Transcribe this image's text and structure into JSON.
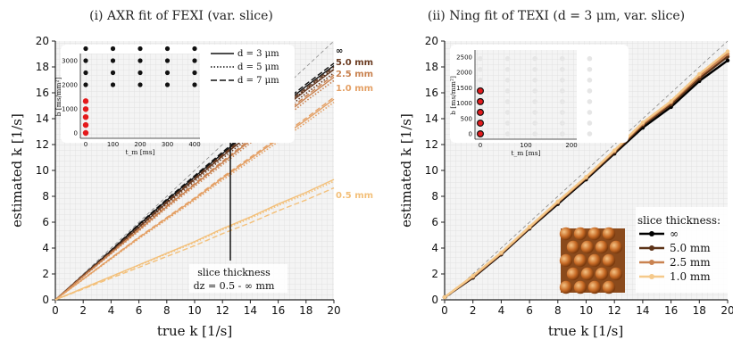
{
  "panels": [
    {
      "title": "(i) AXR fit of FEXI (var. slice)",
      "xlabel": "true k [1/s]",
      "ylabel": "estimated k [1/s]",
      "xticks": [
        "0",
        "2",
        "4",
        "6",
        "8",
        "10",
        "12",
        "14",
        "16",
        "18",
        "20"
      ],
      "yticks": [
        "0",
        "2",
        "4",
        "6",
        "8",
        "10",
        "12",
        "14",
        "16",
        "18",
        "20"
      ],
      "end_labels": [
        {
          "text": "∞",
          "color": "#111111"
        },
        {
          "text": "5.0 mm",
          "color": "#6b3c22"
        },
        {
          "text": "2.5 mm",
          "color": "#c98250"
        },
        {
          "text": "1.0 mm",
          "color": "#e4a065"
        },
        {
          "text": "0.5 mm",
          "color": "#f3c07a"
        }
      ],
      "annotation": [
        "slice thickness",
        "dz = 0.5 - ∞  mm"
      ],
      "legend": [
        "d = 3 μm",
        "d = 5 μm",
        "d = 7 μm"
      ],
      "inset": {
        "xlabel": "t_m [ms]",
        "ylabel": "b [ms/mm²]",
        "xticks": [
          "0",
          "100",
          "200",
          "300",
          "400"
        ],
        "yticks": [
          "0",
          "1000",
          "2000",
          "3000"
        ]
      }
    },
    {
      "title": "(ii) Ning fit of TEXI (d = 3 μm, var. slice)",
      "xlabel": "true k [1/s]",
      "ylabel": "estimated k [1/s]",
      "xticks": [
        "0",
        "2",
        "4",
        "6",
        "8",
        "10",
        "12",
        "14",
        "16",
        "18",
        "20"
      ],
      "yticks": [
        "0",
        "2",
        "4",
        "6",
        "8",
        "10",
        "12",
        "14",
        "16",
        "18",
        "20"
      ],
      "legend_title": "slice thickness:",
      "legend": [
        "∞",
        "5.0 mm",
        "2.5 mm",
        "1.0 mm"
      ],
      "inset": {
        "xlabel": "t_m [ms]",
        "ylabel": "b [ms/mm²]",
        "xticks": [
          "0",
          "100",
          "200"
        ],
        "yticks": [
          "0",
          "500",
          "1000",
          "1500",
          "2000",
          "2500"
        ]
      }
    }
  ],
  "chart_data": [
    {
      "type": "line",
      "title": "(i) AXR fit of FEXI (var. slice)",
      "xlabel": "true k [1/s]",
      "ylabel": "estimated k [1/s]",
      "xlim": [
        0,
        20
      ],
      "ylim": [
        0,
        20
      ],
      "grid": true,
      "x": [
        0,
        2,
        4,
        6,
        8,
        10,
        12,
        14,
        16,
        18,
        20
      ],
      "series": [
        {
          "name": "∞",
          "color": "#111111",
          "values": [
            0,
            1.9,
            3.8,
            5.8,
            7.7,
            9.5,
            11.3,
            13.1,
            14.8,
            16.5,
            18.1
          ]
        },
        {
          "name": "5.0 mm",
          "color": "#6b3c22",
          "values": [
            0,
            1.9,
            3.7,
            5.6,
            7.5,
            9.3,
            11.1,
            12.8,
            14.5,
            16.2,
            17.8
          ]
        },
        {
          "name": "2.5 mm",
          "color": "#c98250",
          "values": [
            0,
            1.8,
            3.6,
            5.4,
            7.2,
            8.9,
            10.6,
            12.3,
            13.9,
            15.6,
            17.2
          ]
        },
        {
          "name": "1.0 mm",
          "color": "#e4a065",
          "values": [
            0,
            1.6,
            3.2,
            4.8,
            6.3,
            7.8,
            9.4,
            10.9,
            12.4,
            13.9,
            15.5
          ]
        },
        {
          "name": "0.5 mm",
          "color": "#f3c07a",
          "values": [
            0,
            0.9,
            1.8,
            2.7,
            3.6,
            4.5,
            5.5,
            6.4,
            7.4,
            8.3,
            9.3
          ]
        }
      ],
      "diffusion_variants": [
        "d = 3 μm (solid)",
        "d = 5 μm (dotted)",
        "d = 7 μm (dashed)"
      ]
    },
    {
      "type": "line",
      "title": "(ii) Ning fit of TEXI (d = 3 μm, var. slice)",
      "xlabel": "true k [1/s]",
      "ylabel": "estimated k [1/s]",
      "xlim": [
        0,
        20
      ],
      "ylim": [
        0,
        20
      ],
      "grid": true,
      "x": [
        0,
        2,
        4,
        6,
        8,
        10,
        12,
        14,
        16,
        18,
        20
      ],
      "series": [
        {
          "name": "∞",
          "color": "#000000",
          "values": [
            0.2,
            1.7,
            3.5,
            5.5,
            7.4,
            9.3,
            11.3,
            13.3,
            14.9,
            16.9,
            18.5
          ]
        },
        {
          "name": "5.0 mm",
          "color": "#5c3318",
          "values": [
            0.2,
            1.75,
            3.55,
            5.55,
            7.5,
            9.4,
            11.4,
            13.5,
            15.1,
            17.1,
            18.8
          ]
        },
        {
          "name": "2.5 mm",
          "color": "#c98250",
          "values": [
            0.2,
            1.8,
            3.6,
            5.6,
            7.55,
            9.45,
            11.5,
            13.6,
            15.25,
            17.3,
            19.0
          ]
        },
        {
          "name": "1.0 mm",
          "color": "#f5c98a",
          "values": [
            0.2,
            1.85,
            3.65,
            5.65,
            7.6,
            9.5,
            11.55,
            13.7,
            15.35,
            17.45,
            19.2
          ]
        }
      ]
    }
  ]
}
